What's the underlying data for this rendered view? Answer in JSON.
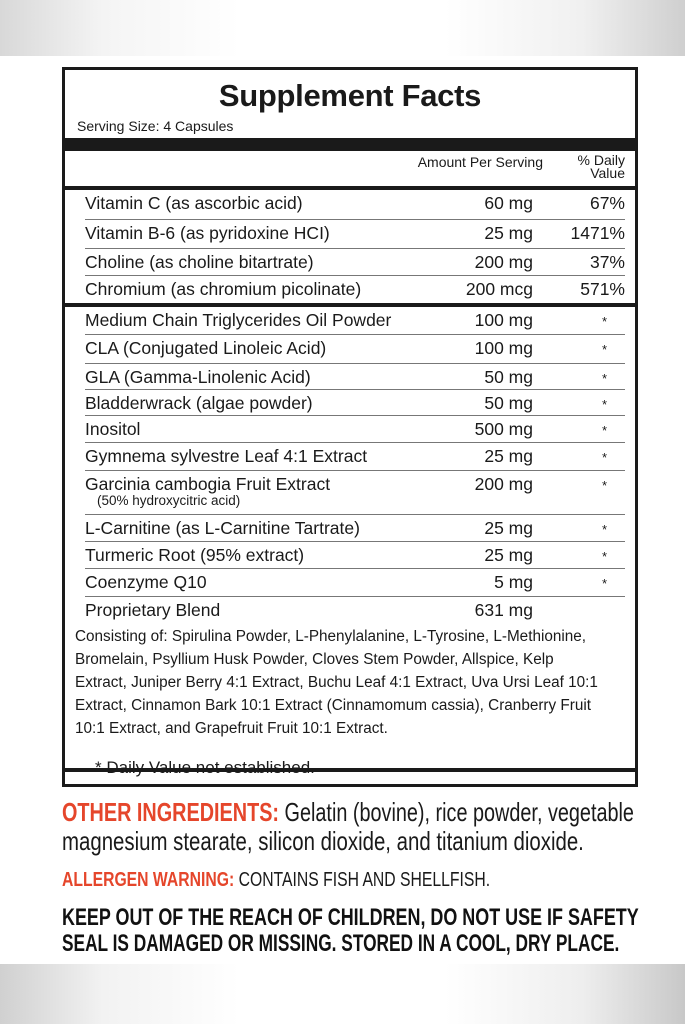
{
  "label": {
    "title": "Supplement Facts",
    "serving_size": "Serving Size: 4 Capsules",
    "header_amount": "Amount Per Serving",
    "header_dv_1": "% Daily",
    "header_dv_2": "Value",
    "rows": [
      {
        "name": "Vitamin C (as ascorbic acid)",
        "amount": "60 mg",
        "dv": "67%"
      },
      {
        "name": "Vitamin B-6 (as pyridoxine HCI)",
        "amount": "25 mg",
        "dv": "1471%"
      },
      {
        "name": "Choline (as choline bitartrate)",
        "amount": "200 mg",
        "dv": "37%"
      },
      {
        "name": "Chromium (as chromium picolinate)",
        "amount": "200 mcg",
        "dv": "571%"
      },
      {
        "name": "Medium Chain Triglycerides Oil Powder",
        "amount": "100 mg",
        "dv": "*"
      },
      {
        "name": "CLA (Conjugated Linoleic Acid)",
        "amount": "100 mg",
        "dv": "*"
      },
      {
        "name": "GLA (Gamma-Linolenic Acid)",
        "amount": "50 mg",
        "dv": "*"
      },
      {
        "name": "Bladderwrack (algae powder)",
        "amount": "50 mg",
        "dv": "*"
      },
      {
        "name": "Inositol",
        "amount": "500 mg",
        "dv": "*"
      },
      {
        "name": "Gymnema sylvestre Leaf 4:1 Extract",
        "amount": "25 mg",
        "dv": "*"
      },
      {
        "name": "Garcinia cambogia Fruit Extract",
        "sub": "(50% hydroxycitric acid)",
        "amount": "200 mg",
        "dv": "*"
      },
      {
        "name": "L-Carnitine (as L-Carnitine Tartrate)",
        "amount": "25 mg",
        "dv": "*"
      },
      {
        "name": "Turmeric Root (95% extract)",
        "amount": "25 mg",
        "dv": "*"
      },
      {
        "name": "Coenzyme Q10",
        "amount": "5 mg",
        "dv": "*"
      }
    ],
    "blend": {
      "name": "Proprietary Blend",
      "amount": "631 mg",
      "consisting": "Consisting of: Spirulina Powder, L-Phenylalanine, L-Tyrosine, L-Methionine, Bromelain, Psyllium Husk Powder, Cloves Stem Powder, Allspice, Kelp Extract, Juniper Berry 4:1 Extract, Buchu Leaf 4:1 Extract, Uva Ursi Leaf 10:1 Extract, Cinnamon Bark 10:1 Extract (Cinnamomum cassia), Cranberry Fruit 10:1 Extract, and Grapefruit Fruit 10:1 Extract."
    },
    "footnote": "* Daily Value not established."
  },
  "other": {
    "ingredients_label": "OTHER INGREDIENTS:",
    "ingredients_line1": " Gelatin (bovine), rice powder, vegetable",
    "ingredients_line2": "magnesium stearate, silicon dioxide, and titanium dioxide.",
    "allergen_label": "ALLERGEN WARNING:",
    "allergen_text": " CONTAINS FISH AND SHELLFISH.",
    "warning_line1": "KEEP OUT OF THE REACH OF CHILDREN, DO NOT USE IF SAFETY",
    "warning_line2": "SEAL IS DAMAGED OR MISSING. STORED IN A COOL, DRY PLACE."
  },
  "colors": {
    "accent_red": "#e5462b",
    "text": "#1a1a1a"
  }
}
